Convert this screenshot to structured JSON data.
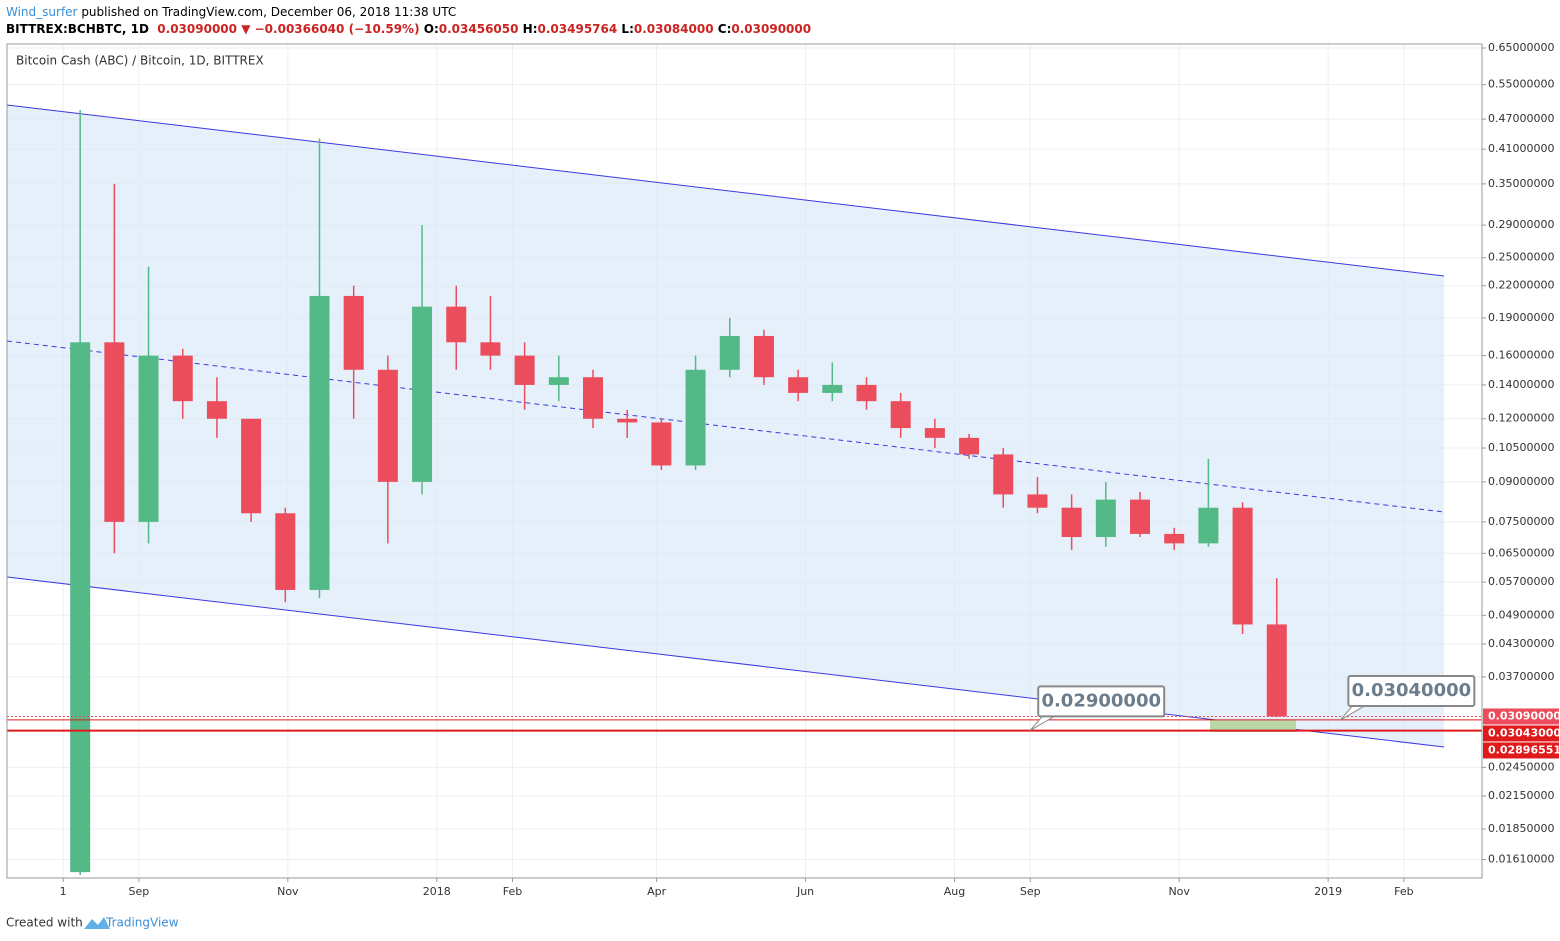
{
  "header": {
    "author": "Wind_surfer",
    "published": " published on TradingView.com, December 06, 2018 11:38 UTC",
    "symbol": "BITTREX:BCHBTC, 1D",
    "last": "0.03090000",
    "change": "−0.00366040 (−10.59%)",
    "o_label": "O:",
    "o": "0.03456050",
    "h_label": "H:",
    "h": "0.03495764",
    "l_label": "L:",
    "l": "0.03084000",
    "c_label": "C:",
    "c": "0.03090000"
  },
  "footer": {
    "created": "Created with",
    "brand": "TradingView"
  },
  "chart_data": {
    "type": "candlestick",
    "title": "Bitcoin Cash (ABC) / Bitcoin, 1D, BITTREX",
    "log_scale": true,
    "grid": true,
    "up_color": "#53b987",
    "down_color": "#eb4d5c",
    "x": [
      "2017-08-01",
      "2017-08-15",
      "2017-08-29",
      "2017-09-12",
      "2017-09-26",
      "2017-10-10",
      "2017-10-24",
      "2017-11-07",
      "2017-11-21",
      "2017-12-05",
      "2017-12-19",
      "2018-01-02",
      "2018-01-16",
      "2018-01-30",
      "2018-02-13",
      "2018-02-27",
      "2018-03-13",
      "2018-03-27",
      "2018-04-10",
      "2018-04-24",
      "2018-05-08",
      "2018-05-22",
      "2018-06-05",
      "2018-06-19",
      "2018-07-03",
      "2018-07-17",
      "2018-07-31",
      "2018-08-14",
      "2018-08-28",
      "2018-09-11",
      "2018-09-25",
      "2018-10-09",
      "2018-10-23",
      "2018-11-06",
      "2018-11-20",
      "2018-12-04"
    ],
    "open": [
      0.0152,
      0.17,
      0.075,
      0.16,
      0.13,
      0.12,
      0.078,
      0.055,
      0.21,
      0.15,
      0.09,
      0.2,
      0.17,
      0.16,
      0.14,
      0.145,
      0.12,
      0.118,
      0.097,
      0.15,
      0.175,
      0.145,
      0.135,
      0.14,
      0.13,
      0.115,
      0.11,
      0.102,
      0.085,
      0.08,
      0.07,
      0.083,
      0.071,
      0.068,
      0.08,
      0.047
    ],
    "high": [
      0.49,
      0.35,
      0.24,
      0.165,
      0.145,
      0.12,
      0.08,
      0.43,
      0.22,
      0.16,
      0.29,
      0.22,
      0.21,
      0.17,
      0.16,
      0.15,
      0.125,
      0.12,
      0.16,
      0.19,
      0.18,
      0.15,
      0.155,
      0.145,
      0.135,
      0.12,
      0.112,
      0.105,
      0.092,
      0.085,
      0.09,
      0.086,
      0.073,
      0.1,
      0.082,
      0.058
    ],
    "low": [
      0.015,
      0.065,
      0.068,
      0.12,
      0.11,
      0.075,
      0.052,
      0.053,
      0.12,
      0.068,
      0.085,
      0.15,
      0.15,
      0.125,
      0.13,
      0.115,
      0.11,
      0.095,
      0.095,
      0.145,
      0.14,
      0.13,
      0.13,
      0.125,
      0.11,
      0.105,
      0.1,
      0.08,
      0.078,
      0.066,
      0.067,
      0.07,
      0.066,
      0.067,
      0.045,
      0.0308
    ],
    "close": [
      0.17,
      0.075,
      0.16,
      0.13,
      0.12,
      0.078,
      0.055,
      0.21,
      0.15,
      0.09,
      0.2,
      0.17,
      0.16,
      0.14,
      0.145,
      0.12,
      0.118,
      0.097,
      0.15,
      0.175,
      0.145,
      0.135,
      0.14,
      0.13,
      0.115,
      0.11,
      0.102,
      0.085,
      0.08,
      0.07,
      0.083,
      0.071,
      0.068,
      0.08,
      0.047,
      0.0309
    ],
    "xlim": [
      "2017-07-09",
      "2019-03-05"
    ],
    "xticks": [
      {
        "value": "2017-08-01",
        "label": "1"
      },
      {
        "value": "2017-09-01",
        "label": "Sep"
      },
      {
        "value": "2017-11-01",
        "label": "Nov"
      },
      {
        "value": "2018-01-01",
        "label": "2018"
      },
      {
        "value": "2018-02-01",
        "label": "Feb"
      },
      {
        "value": "2018-04-01",
        "label": "Apr"
      },
      {
        "value": "2018-06-01",
        "label": "Jun"
      },
      {
        "value": "2018-08-01",
        "label": "Aug"
      },
      {
        "value": "2018-09-01",
        "label": "Sep"
      },
      {
        "value": "2018-11-01",
        "label": "Nov"
      },
      {
        "value": "2019-01-01",
        "label": "2019"
      },
      {
        "value": "2019-02-01",
        "label": "Feb"
      }
    ],
    "ylim": [
      0.0148,
      0.662
    ],
    "yticks": [
      {
        "value": 0.65,
        "label": "0.65000000"
      },
      {
        "value": 0.55,
        "label": "0.55000000"
      },
      {
        "value": 0.47,
        "label": "0.47000000"
      },
      {
        "value": 0.41,
        "label": "0.41000000"
      },
      {
        "value": 0.35,
        "label": "0.35000000"
      },
      {
        "value": 0.29,
        "label": "0.29000000"
      },
      {
        "value": 0.25,
        "label": "0.25000000"
      },
      {
        "value": 0.22,
        "label": "0.22000000"
      },
      {
        "value": 0.19,
        "label": "0.19000000"
      },
      {
        "value": 0.16,
        "label": "0.16000000"
      },
      {
        "value": 0.14,
        "label": "0.14000000"
      },
      {
        "value": 0.12,
        "label": "0.12000000"
      },
      {
        "value": 0.105,
        "label": "0.10500000"
      },
      {
        "value": 0.09,
        "label": "0.09000000"
      },
      {
        "value": 0.075,
        "label": "0.07500000"
      },
      {
        "value": 0.065,
        "label": "0.06500000"
      },
      {
        "value": 0.057,
        "label": "0.05700000"
      },
      {
        "value": 0.049,
        "label": "0.04900000"
      },
      {
        "value": 0.043,
        "label": "0.04300000"
      },
      {
        "value": 0.037,
        "label": "0.03700000"
      },
      {
        "value": 0.0245,
        "label": "0.02450000"
      },
      {
        "value": 0.0215,
        "label": "0.02150000"
      },
      {
        "value": 0.0185,
        "label": "0.01850000"
      },
      {
        "value": 0.0161,
        "label": "0.01610000"
      }
    ],
    "price_lines": [
      {
        "value": 0.0309,
        "label": "0.03090000",
        "color": "#eb4d5c",
        "style": "dotted"
      },
      {
        "value": 0.03043,
        "label": "0.03043000",
        "color": "#e0191c",
        "style": "solid"
      },
      {
        "value": 0.02896551,
        "label": "0.02896551",
        "color": "#e0191c",
        "style": "thick"
      }
    ],
    "annotations": [
      {
        "label": "0.02900000",
        "value": 0.029,
        "x": "2018-09-01"
      },
      {
        "label": "0.03040000",
        "value": 0.0304,
        "x": "2019-01-06"
      }
    ]
  }
}
